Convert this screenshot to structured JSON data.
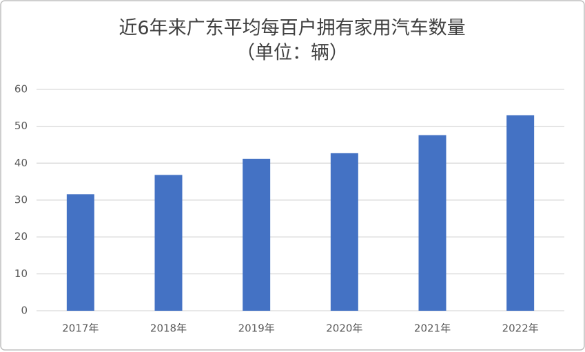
{
  "chart_data": {
    "type": "bar",
    "title": "近6年来广东平均每百户拥有家用汽车数量",
    "subtitle": "（单位：辆）",
    "categories": [
      "2017年",
      "2018年",
      "2019年",
      "2020年",
      "2021年",
      "2022年"
    ],
    "values": [
      31.6,
      36.8,
      41.2,
      42.7,
      47.6,
      53.0
    ],
    "color": "#4472c4",
    "ylim": [
      0,
      60
    ],
    "yticks": [
      0,
      10,
      20,
      30,
      40,
      50,
      60
    ],
    "grid": true
  }
}
